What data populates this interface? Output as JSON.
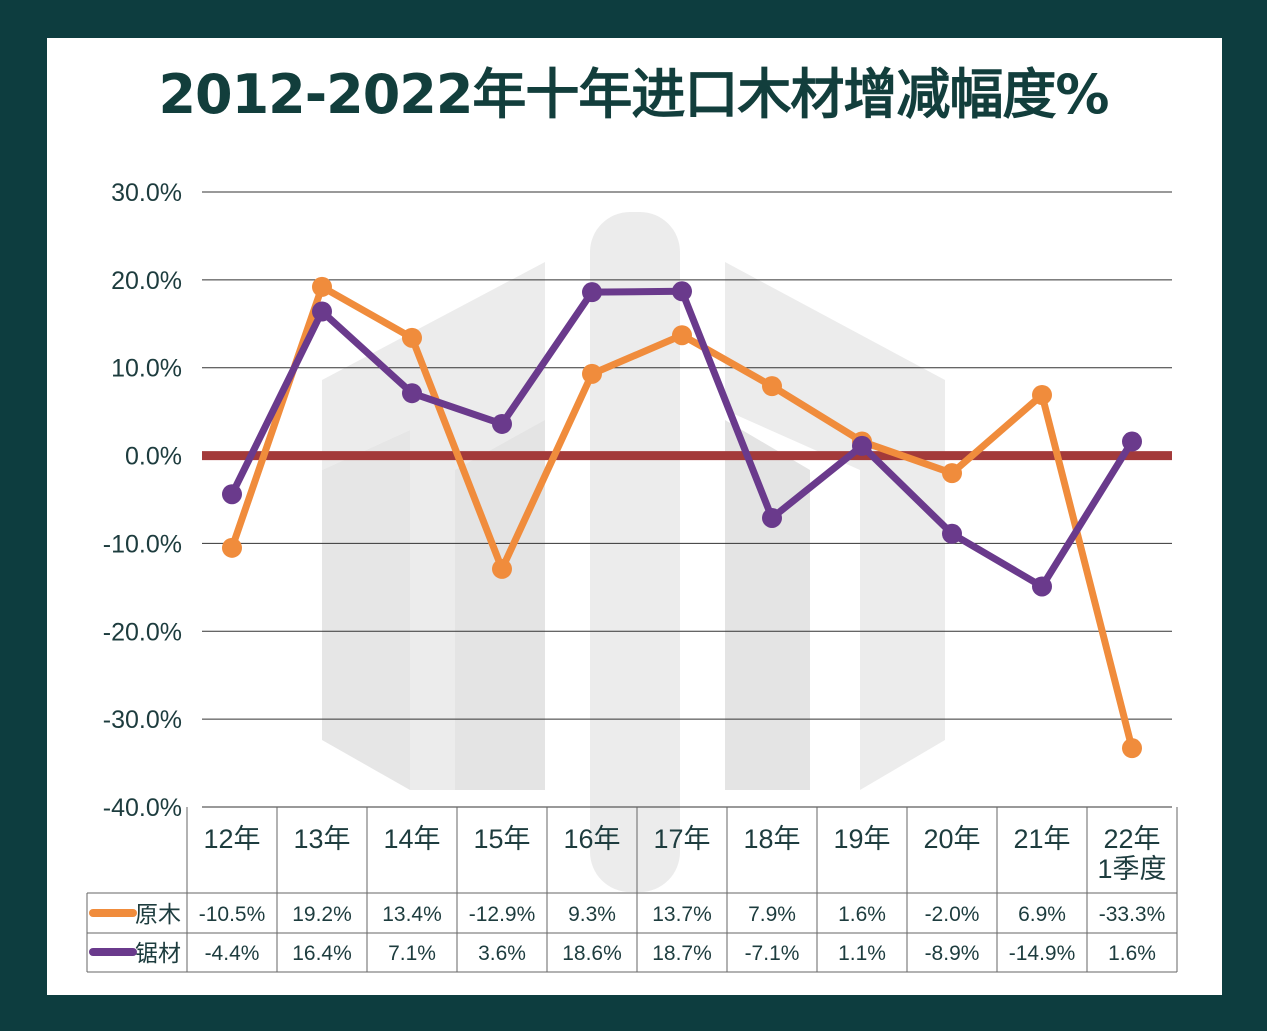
{
  "chart_data": {
    "type": "line",
    "title": "2012-2022年十年进口木材增减幅度%",
    "categories": [
      "12年",
      "13年",
      "14年",
      "15年",
      "16年",
      "17年",
      "18年",
      "19年",
      "20年",
      "21年",
      [
        "22年",
        "1季度"
      ]
    ],
    "ylim": [
      -40,
      30
    ],
    "yticks": [
      "30.0%",
      "20.0%",
      "10.0%",
      "0.0%",
      "-10.0%",
      "-20.0%",
      "-30.0%",
      "-40.0%"
    ],
    "grid": true,
    "series": [
      {
        "name": "原木",
        "color": "#f08c3c",
        "values": [
          -10.5,
          19.2,
          13.4,
          -12.9,
          9.3,
          13.7,
          7.9,
          1.6,
          -2.0,
          6.9,
          -33.3
        ],
        "labels": [
          "-10.5%",
          "19.2%",
          "13.4%",
          "-12.9%",
          "9.3%",
          "13.7%",
          "7.9%",
          "1.6%",
          "-2.0%",
          "6.9%",
          "-33.3%"
        ]
      },
      {
        "name": "锯材",
        "color": "#6a3a8c",
        "values": [
          -4.4,
          16.4,
          7.1,
          3.6,
          18.6,
          18.7,
          -7.1,
          1.1,
          -8.9,
          -14.9,
          1.6
        ],
        "labels": [
          "-4.4%",
          "16.4%",
          "7.1%",
          "3.6%",
          "18.6%",
          "18.7%",
          "-7.1%",
          "1.1%",
          "-8.9%",
          "-14.9%",
          "1.6%"
        ]
      }
    ],
    "zero_line_color": "#a33a3a",
    "legend": "data-table"
  }
}
